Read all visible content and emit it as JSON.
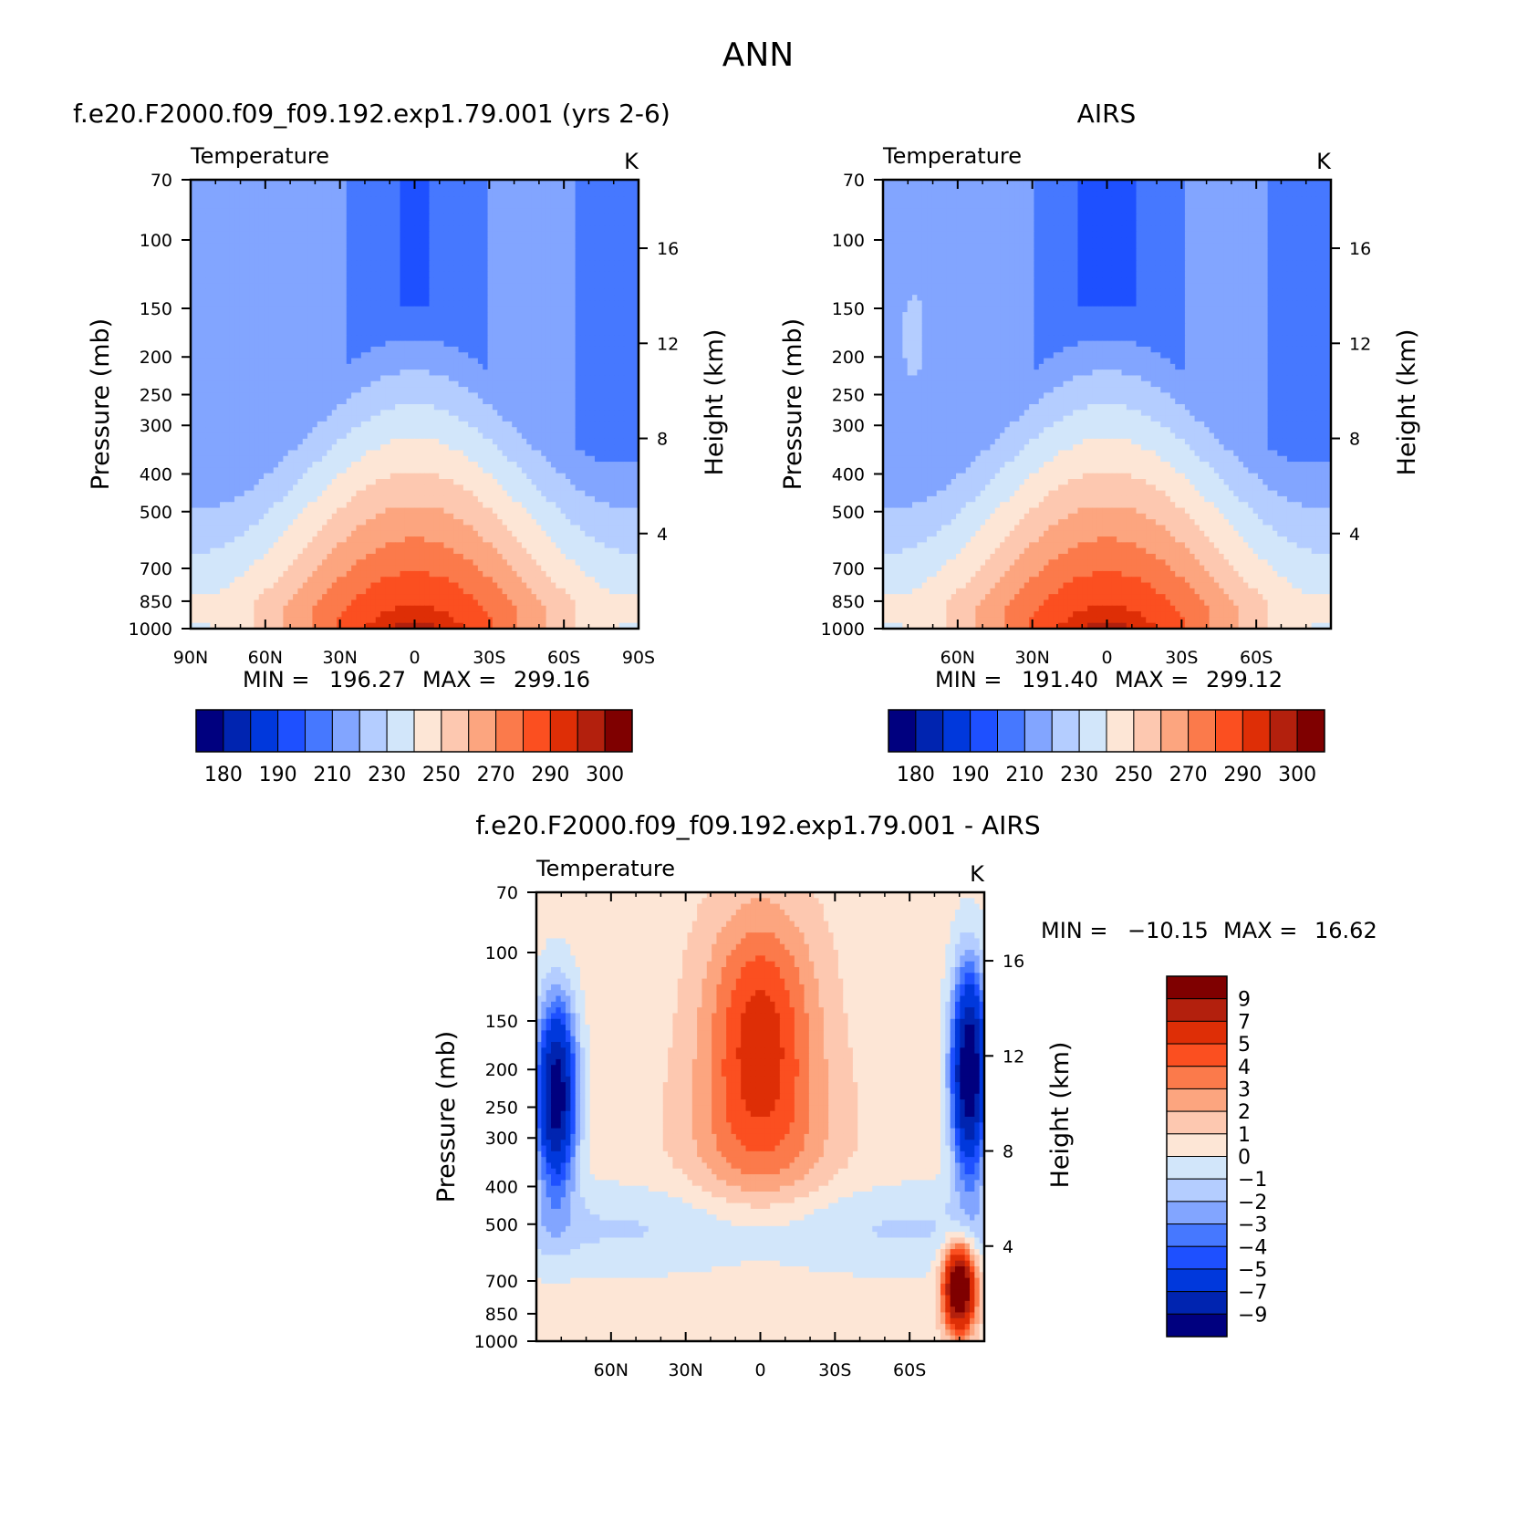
{
  "figure": {
    "title": "ANN"
  },
  "colors": {
    "temperature": [
      "#00007f",
      "#0024b0",
      "#0038dc",
      "#1e50ff",
      "#4678ff",
      "#82a5ff",
      "#b4cdff",
      "#d2e6fa",
      "#fde6d6",
      "#fdc8b0",
      "#fca57f",
      "#fb7a4b",
      "#fb4f20",
      "#de2e06",
      "#b3200d",
      "#7f0000"
    ],
    "difference": [
      "#7f0000",
      "#b3200d",
      "#de2e06",
      "#fb4f20",
      "#fb7a4b",
      "#fca57f",
      "#fdc8b0",
      "#fde6d6",
      "#d2e6fa",
      "#b4cdff",
      "#82a5ff",
      "#4678ff",
      "#1e50ff",
      "#0038dc",
      "#0024b0",
      "#00007f"
    ]
  },
  "chart_data": [
    {
      "type": "heatmap",
      "id": "model",
      "title": "f.e20.F2000.f09_f09.192.exp1.79.001 (yrs 2-6)",
      "left_label": "Temperature",
      "units": "K",
      "ylabel": "Pressure (mb)",
      "y2label": "Height (km)",
      "xlim": [
        90,
        -90
      ],
      "ylim": [
        1000,
        70
      ],
      "xticks": [
        {
          "value": 90,
          "label": "90N"
        },
        {
          "value": 60,
          "label": "60N"
        },
        {
          "value": 30,
          "label": "30N"
        },
        {
          "value": 0,
          "label": "0"
        },
        {
          "value": -30,
          "label": "30S"
        },
        {
          "value": -60,
          "label": "60S"
        },
        {
          "value": -90,
          "label": "90S"
        }
      ],
      "yticks": [
        70,
        100,
        150,
        200,
        250,
        300,
        400,
        500,
        700,
        850,
        1000
      ],
      "height_ticks": [
        4,
        8,
        12,
        16
      ],
      "stats": {
        "min_label": "MIN =",
        "min": "196.27",
        "max_label": "MAX =",
        "max": "299.16"
      },
      "colorbar_labels": [
        "180",
        "190",
        "210",
        "230",
        "250",
        "270",
        "290",
        "300"
      ],
      "levels": [
        180,
        185,
        190,
        200,
        210,
        220,
        230,
        240,
        250,
        260,
        270,
        280,
        290,
        295,
        300
      ],
      "surface_temp": 299.16,
      "tropopause_min": 196.27
    },
    {
      "type": "heatmap",
      "id": "obs",
      "title": "AIRS",
      "left_label": "Temperature",
      "units": "K",
      "ylabel": "Pressure (mb)",
      "y2label": "Height (km)",
      "xlim": [
        90,
        -90
      ],
      "ylim": [
        1000,
        70
      ],
      "xticks": [
        {
          "value": 60,
          "label": "60N"
        },
        {
          "value": 30,
          "label": "30N"
        },
        {
          "value": 0,
          "label": "0"
        },
        {
          "value": -30,
          "label": "30S"
        },
        {
          "value": -60,
          "label": "60S"
        }
      ],
      "yticks": [
        70,
        100,
        150,
        200,
        250,
        300,
        400,
        500,
        700,
        850,
        1000
      ],
      "height_ticks": [
        4,
        8,
        12,
        16
      ],
      "stats": {
        "min_label": "MIN =",
        "min": "191.40",
        "max_label": "MAX =",
        "max": "299.12"
      },
      "colorbar_labels": [
        "180",
        "190",
        "210",
        "230",
        "250",
        "270",
        "290",
        "300"
      ],
      "levels": [
        180,
        185,
        190,
        200,
        210,
        220,
        230,
        240,
        250,
        260,
        270,
        280,
        290,
        295,
        300
      ],
      "surface_temp": 299.12,
      "tropopause_min": 191.4
    },
    {
      "type": "heatmap",
      "id": "diff",
      "title": "f.e20.F2000.f09_f09.192.exp1.79.001 - AIRS",
      "left_label": "Temperature",
      "units": "K",
      "ylabel": "Pressure (mb)",
      "y2label": "Height (km)",
      "xlim": [
        90,
        -90
      ],
      "ylim": [
        1000,
        70
      ],
      "xticks": [
        {
          "value": 60,
          "label": "60N"
        },
        {
          "value": 30,
          "label": "30N"
        },
        {
          "value": 0,
          "label": "0"
        },
        {
          "value": -30,
          "label": "30S"
        },
        {
          "value": -60,
          "label": "60S"
        }
      ],
      "yticks": [
        70,
        100,
        150,
        200,
        250,
        300,
        400,
        500,
        700,
        850,
        1000
      ],
      "height_ticks": [
        4,
        8,
        12,
        16
      ],
      "stats": {
        "min_label": "MIN =",
        "min": "-10.15",
        "max_label": "MAX =",
        "max": "16.62"
      },
      "colorbar_labels": [
        "9",
        "7",
        "5",
        "4",
        "3",
        "2",
        "1",
        "0",
        "-1",
        "-2",
        "-3",
        "-4",
        "-5",
        "-7",
        "-9"
      ],
      "levels": [
        9,
        7,
        5,
        4,
        3,
        2,
        1,
        0,
        -1,
        -2,
        -3,
        -4,
        -5,
        -7,
        -9
      ]
    }
  ]
}
